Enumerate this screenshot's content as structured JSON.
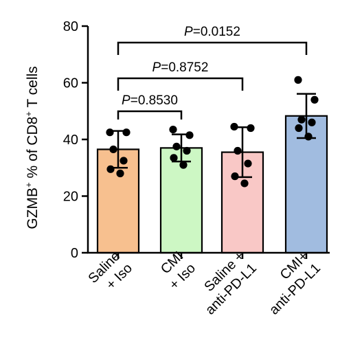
{
  "chart_data": {
    "type": "bar",
    "ylabel": {
      "text": "GZMB",
      "sup1": "+",
      "middle": " % of CD8",
      "sup2": "+",
      "end": " T cells"
    },
    "ylim": [
      0,
      80
    ],
    "yticks": [
      "0",
      "20",
      "40",
      "60",
      "80"
    ],
    "grid": false,
    "categories": [
      {
        "line1": "Saline",
        "line2": "+ Iso"
      },
      {
        "line1": "CMI",
        "line2": "+ Iso"
      },
      {
        "line1": "Saline +",
        "line2": "anti-PD-L1"
      },
      {
        "line1": "CMI+",
        "line2": "anti-PD-L1"
      }
    ],
    "bars": [
      {
        "mean": 36.5,
        "sd": 6.5,
        "color": "#F7C08F",
        "points": [
          42.5,
          42.5,
          36.5,
          32.5,
          29.5,
          28.0
        ]
      },
      {
        "mean": 37.0,
        "sd": 4.8,
        "color": "#CDF7C4",
        "points": [
          43.5,
          41.5,
          37.5,
          36.0,
          33.5,
          31.0
        ]
      },
      {
        "mean": 35.5,
        "sd": 8.8,
        "color": "#F9C8C6",
        "points": [
          44.5,
          44.0,
          36.0,
          31.5,
          27.0,
          24.5
        ]
      },
      {
        "mean": 48.3,
        "sd": 7.8,
        "color": "#A1BCE0",
        "points": [
          61.0,
          54.0,
          47.0,
          46.0,
          44.0,
          41.0
        ]
      }
    ],
    "comparisons": [
      {
        "from": 0,
        "to": 1,
        "p_prefix": "P",
        "p_value": "=0.8530",
        "level": 1
      },
      {
        "from": 0,
        "to": 2,
        "p_prefix": "P",
        "p_value": "=0.8752",
        "level": 2
      },
      {
        "from": 0,
        "to": 3,
        "p_prefix": "P",
        "p_value": "=0.0152",
        "level": 3
      }
    ]
  }
}
